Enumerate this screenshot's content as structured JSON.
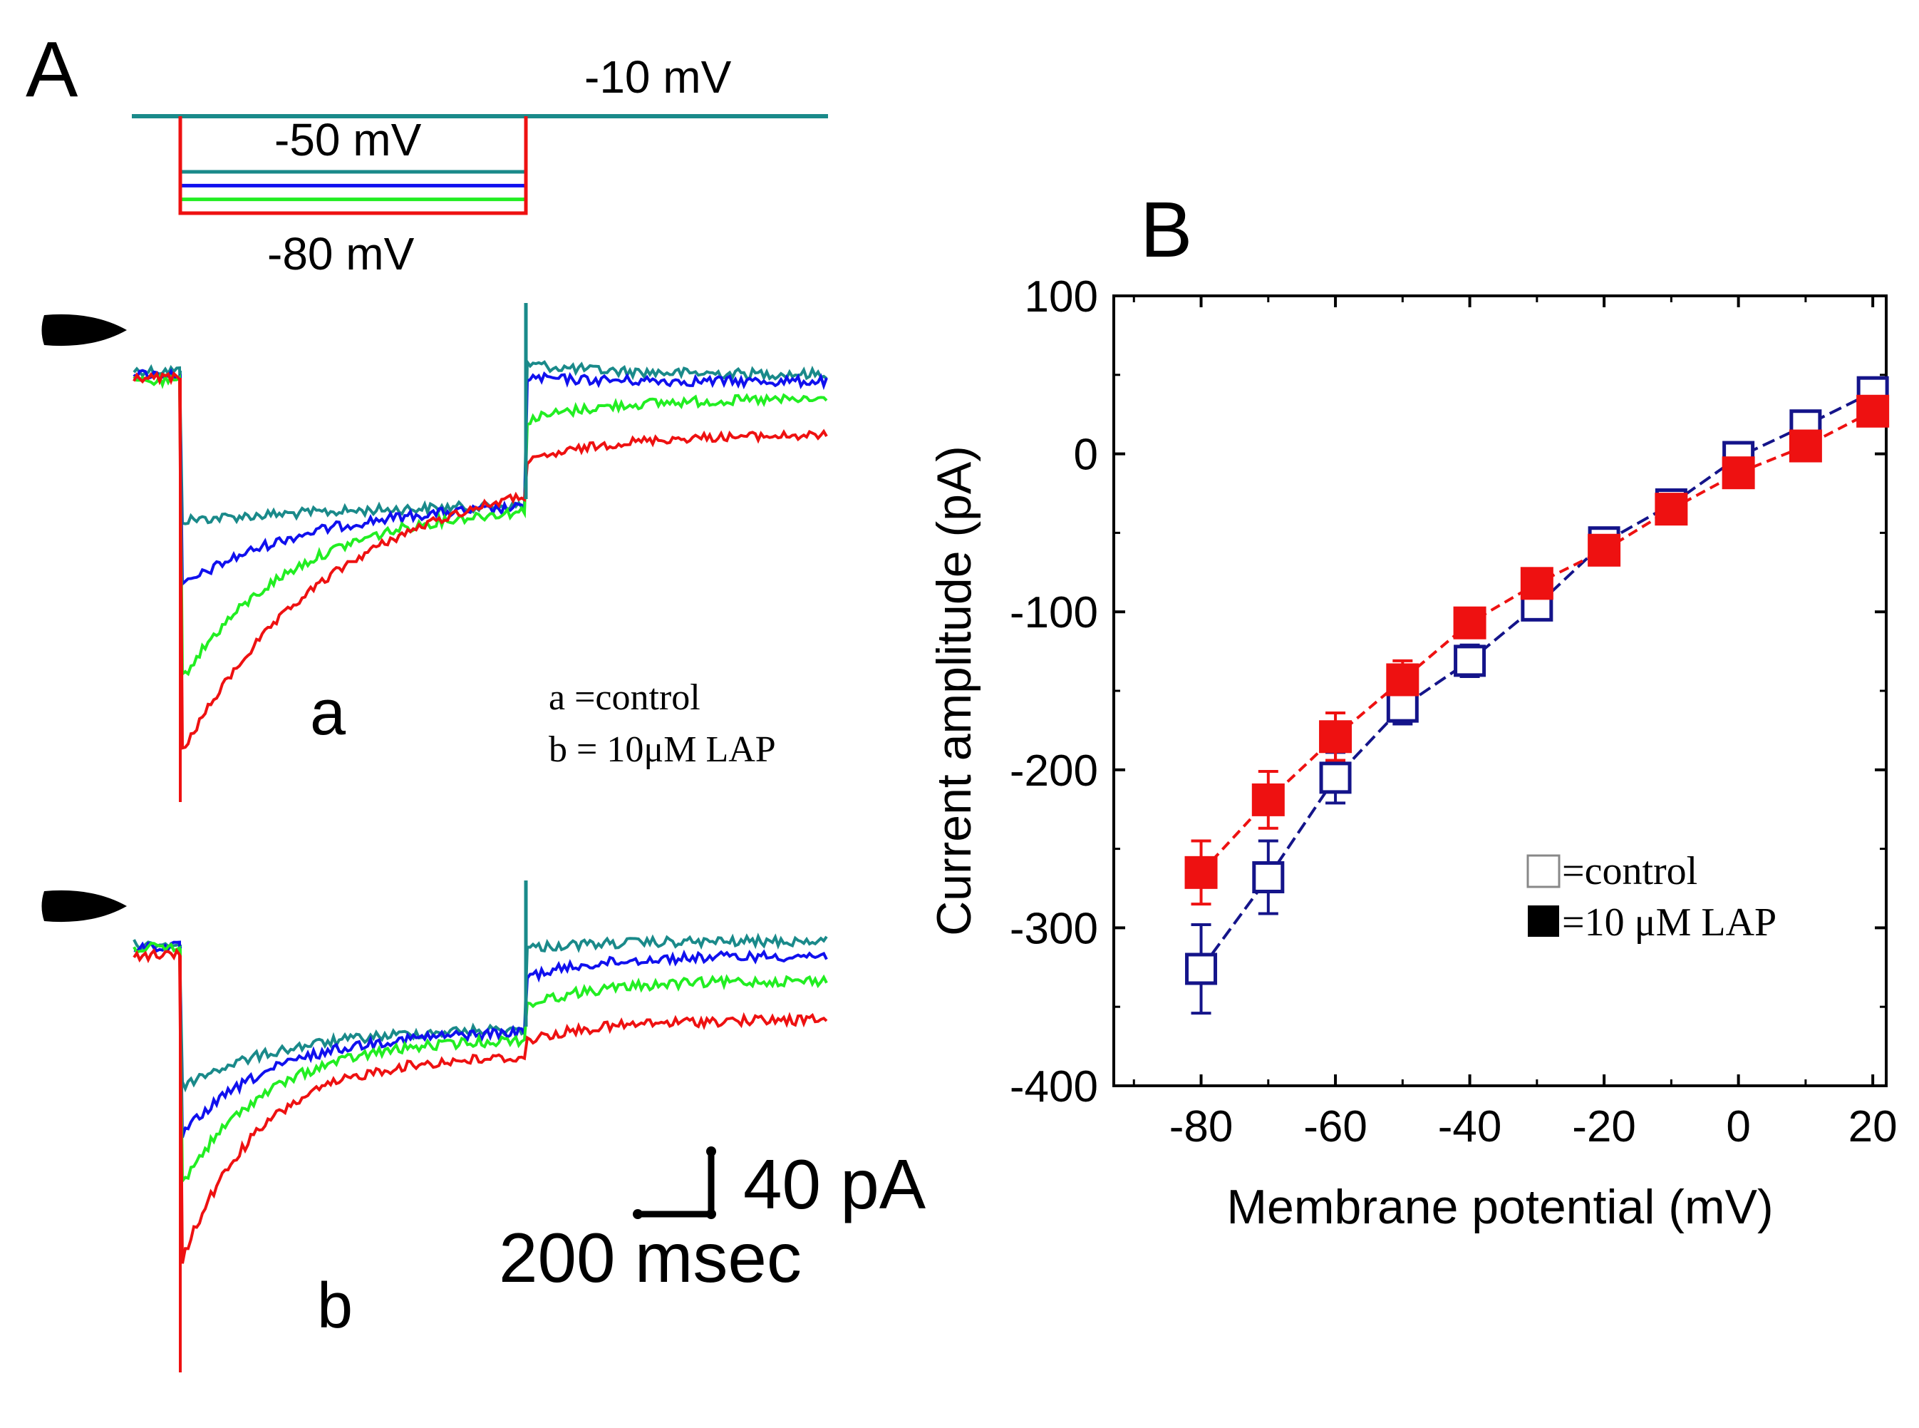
{
  "panel_a": {
    "label": "A",
    "protocol": {
      "holding_label": "-10 mV",
      "top_step_label": "-50 mV",
      "bottom_step_label": "-80 mV",
      "holding_mV": -10,
      "step_mV": [
        -50,
        -60,
        -70,
        -80
      ]
    },
    "trace_colors": [
      "#1a8a8a",
      "#1010ee",
      "#22ee22",
      "#ee1111"
    ],
    "trace_steps_mV": [
      -50,
      -60,
      -70,
      -80
    ],
    "sub_a_label": "a",
    "sub_b_label": "b",
    "legend_a": "a =control",
    "legend_b": "b = 10μM LAP",
    "scale_current": "40 pA",
    "scale_time": "200 msec"
  },
  "chart_data": {
    "type": "scatter",
    "panel_label": "B",
    "xlabel": "Membrane potential (mV)",
    "ylabel": "Current amplitude (pA)",
    "xlim": [
      -93,
      22
    ],
    "ylim": [
      -400,
      100
    ],
    "xticks": [
      -80,
      -60,
      -40,
      -20,
      0,
      20
    ],
    "yticks": [
      100,
      0,
      -100,
      -200,
      -300,
      -400
    ],
    "x": [
      -80,
      -70,
      -60,
      -50,
      -40,
      -30,
      -20,
      -10,
      0,
      10,
      20
    ],
    "series": [
      {
        "name": "control",
        "legend_label": "=control",
        "color": "#14148a",
        "marker": "open-square",
        "values": [
          -326,
          -268,
          -205,
          -160,
          -131,
          -96,
          -56,
          -32,
          -2,
          18,
          39
        ],
        "errors": [
          28,
          23,
          16,
          11,
          10,
          6,
          4,
          3,
          3,
          3,
          3
        ]
      },
      {
        "name": "10 μM LAP",
        "legend_label": "=10 μM LAP",
        "color": "#ee1111",
        "marker": "filled-square",
        "values": [
          -265,
          -219,
          -179,
          -143,
          -107,
          -82,
          -61,
          -35,
          -12,
          5,
          27
        ],
        "errors": [
          20,
          18,
          15,
          12,
          8,
          5,
          4,
          3,
          3,
          3,
          3
        ]
      }
    ]
  }
}
